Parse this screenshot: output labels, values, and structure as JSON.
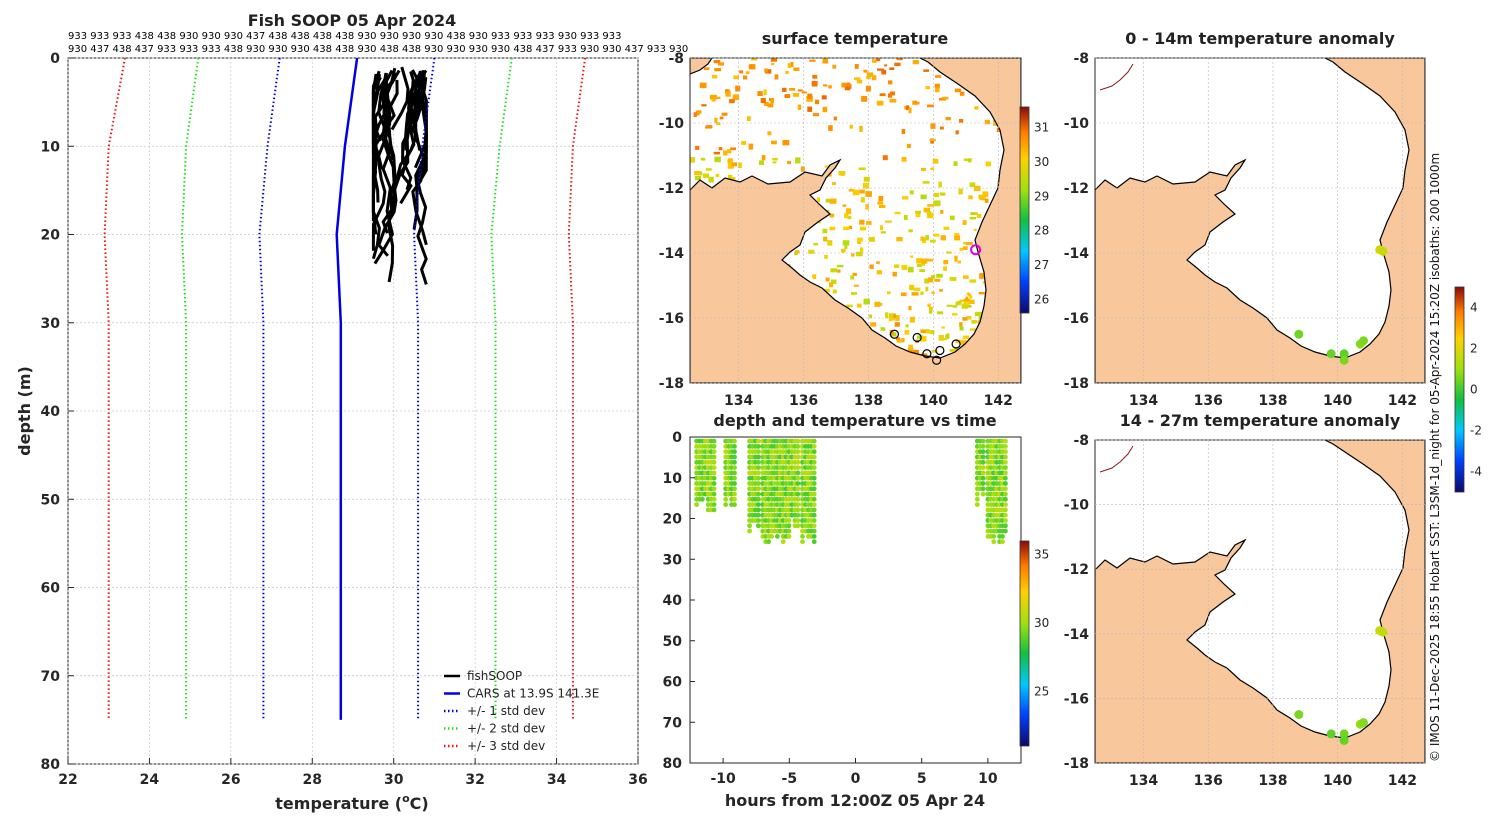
{
  "figure_title": "Fish SOOP 05 Apr 2024",
  "credit": "© IMOS 11-Dec-2025 18:55 Hobart SST: L3SM-1d_night for 05-Apr-2024 15:20Z isobaths: 200  1000m",
  "vessel_ids_row1": "933 933 933 438 438 930 930 930 437 438 438 438 438 930 930 930 930 438 930 933 933 933 930 933 933",
  "vessel_ids_row2": "930 437 438 437 933 933 933 438 930 930 930 438 438 930 438 438 930 930 930 930 438 437 933 930 930 437 933 930",
  "colors": {
    "cars": "#0000e0",
    "std1": "#0000e0",
    "std2": "#22dd22",
    "std3": "#ee1111",
    "land": "#f9c79c",
    "obs": "#000000"
  },
  "chart_data": [
    {
      "id": "profile",
      "type": "line",
      "title": "Fish SOOP 05 Apr 2024",
      "xlabel_main": "temperature (",
      "xlabel_sup": "o",
      "xlabel_end": "C)",
      "ylabel": "depth (m)",
      "xlim": [
        22,
        36
      ],
      "ylim": [
        0,
        80
      ],
      "y_reversed": true,
      "xticks": [
        "22",
        "24",
        "26",
        "28",
        "30",
        "32",
        "34",
        "36"
      ],
      "yticks": [
        "0",
        "10",
        "20",
        "30",
        "40",
        "50",
        "60",
        "70",
        "80"
      ],
      "grid": true,
      "legend_position": "bottom-right",
      "series": [
        {
          "name": "fishSOOP",
          "style": "solid-black",
          "depth": [
            1,
            3,
            5,
            8,
            10,
            12,
            15,
            18,
            20,
            22,
            25,
            27
          ],
          "temp": [
            29.9,
            30.3,
            30.1,
            30.6,
            29.8,
            30.4,
            30.0,
            30.5,
            29.9,
            30.2,
            30.3,
            30.25
          ]
        },
        {
          "name": "CARS at 13.9S 141.3E",
          "style": "solid",
          "depth": [
            0,
            10,
            20,
            30,
            40,
            50,
            60,
            70,
            75
          ],
          "temp": [
            29.1,
            28.8,
            28.6,
            28.7,
            28.7,
            28.7,
            28.7,
            28.7,
            28.7
          ]
        },
        {
          "name": "+/- 1 std dev",
          "style": "dotted",
          "depth": [
            0,
            10,
            20,
            30,
            40,
            50,
            60,
            70,
            75
          ],
          "temp": [
            27.2,
            26.9,
            26.7,
            26.8,
            26.8,
            26.8,
            26.8,
            26.8,
            26.8
          ]
        },
        {
          "name": "+/- 1 std dev",
          "style": "dotted",
          "legend": false,
          "depth": [
            0,
            10,
            20,
            30,
            40,
            50,
            60,
            70,
            75
          ],
          "temp": [
            31.0,
            30.7,
            30.5,
            30.6,
            30.6,
            30.6,
            30.6,
            30.6,
            30.6
          ]
        },
        {
          "name": "+/- 2 std dev",
          "style": "dotted",
          "depth": [
            0,
            10,
            20,
            30,
            40,
            50,
            60,
            70,
            75
          ],
          "temp": [
            25.2,
            24.9,
            24.8,
            24.9,
            24.9,
            24.9,
            24.9,
            24.9,
            24.9
          ]
        },
        {
          "name": "+/- 2 std dev",
          "style": "dotted",
          "legend": false,
          "depth": [
            0,
            10,
            20,
            30,
            40,
            50,
            60,
            70,
            75
          ],
          "temp": [
            32.9,
            32.6,
            32.4,
            32.5,
            32.5,
            32.5,
            32.5,
            32.5,
            32.5
          ]
        },
        {
          "name": "+/- 3 std dev",
          "style": "dotted",
          "depth": [
            0,
            10,
            20,
            30,
            40,
            50,
            60,
            70,
            75
          ],
          "temp": [
            23.4,
            23.0,
            22.9,
            23.0,
            23.0,
            23.0,
            23.0,
            23.0,
            23.0
          ]
        },
        {
          "name": "+/- 3 std dev",
          "style": "dotted",
          "legend": false,
          "depth": [
            0,
            10,
            20,
            30,
            40,
            50,
            60,
            70,
            75
          ],
          "temp": [
            34.7,
            34.4,
            34.3,
            34.4,
            34.4,
            34.4,
            34.4,
            34.4,
            34.4
          ]
        }
      ]
    },
    {
      "id": "sst_map",
      "type": "heatmap",
      "title": "surface temperature",
      "xlim": [
        132.5,
        142.7
      ],
      "ylim": [
        -18,
        -8
      ],
      "xticks": [
        "134",
        "136",
        "138",
        "140",
        "142"
      ],
      "yticks": [
        "-8",
        "-10",
        "-12",
        "-14",
        "-16",
        "-18"
      ],
      "colorbar_ticks": [
        "26",
        "27",
        "28",
        "29",
        "30",
        "31"
      ],
      "colorbar_range": [
        25.6,
        31.6
      ],
      "obs_points": [
        [
          138.8,
          -16.5
        ],
        [
          139.5,
          -16.6
        ],
        [
          139.8,
          -17.1
        ],
        [
          140.2,
          -17.0
        ],
        [
          140.1,
          -17.3
        ],
        [
          140.7,
          -16.8
        ]
      ],
      "cars_point": [
        141.3,
        -13.9
      ]
    },
    {
      "id": "time_depth",
      "type": "scatter",
      "title": "depth and temperature vs time",
      "xlabel": "hours from 12:00Z 05 Apr 24",
      "xlim": [
        -12.5,
        12.5
      ],
      "ylim": [
        0,
        80
      ],
      "y_reversed": true,
      "xticks": [
        "-10",
        "-5",
        "0",
        "5",
        "10"
      ],
      "yticks": [
        "0",
        "10",
        "20",
        "30",
        "40",
        "50",
        "60",
        "70",
        "80"
      ],
      "colorbar_ticks": [
        "25",
        "30",
        "35"
      ],
      "colorbar_range": [
        21,
        36
      ],
      "casts": [
        {
          "t0": -12.0,
          "t1": -10.5,
          "maxdepth": 19
        },
        {
          "t0": -9.8,
          "t1": -9.0,
          "maxdepth": 18
        },
        {
          "t0": -8.0,
          "t1": -7.2,
          "maxdepth": 25
        },
        {
          "t0": -7.0,
          "t1": -5.0,
          "maxdepth": 27
        },
        {
          "t0": -4.8,
          "t1": -4.2,
          "maxdepth": 24
        },
        {
          "t0": -4.0,
          "t1": -3.0,
          "maxdepth": 27
        },
        {
          "t0": 9.2,
          "t1": 9.8,
          "maxdepth": 17
        },
        {
          "t0": 10.0,
          "t1": 11.5,
          "maxdepth": 27
        }
      ]
    },
    {
      "id": "anom_shallow",
      "type": "scatter",
      "title": "0 - 14m temperature anomaly",
      "xlim": [
        132.5,
        142.7
      ],
      "ylim": [
        -18,
        -8
      ],
      "xticks": [
        "134",
        "136",
        "138",
        "140",
        "142"
      ],
      "yticks": [
        "-8",
        "-10",
        "-12",
        "-14",
        "-16",
        "-18"
      ],
      "points": [
        [
          138.8,
          -16.5,
          0.5
        ],
        [
          139.8,
          -17.1,
          0.4
        ],
        [
          140.2,
          -17.1,
          0.3
        ],
        [
          140.2,
          -17.3,
          0.6
        ],
        [
          140.7,
          -16.8,
          0.7
        ],
        [
          140.8,
          -16.7,
          0.6
        ],
        [
          141.3,
          -13.9,
          1.8
        ],
        [
          141.4,
          -13.95,
          1.6
        ]
      ]
    },
    {
      "id": "anom_deep",
      "type": "scatter",
      "title": "14 - 27m temperature anomaly",
      "xlim": [
        132.5,
        142.7
      ],
      "ylim": [
        -18,
        -8
      ],
      "xticks": [
        "134",
        "136",
        "138",
        "140",
        "142"
      ],
      "yticks": [
        "-8",
        "-10",
        "-12",
        "-14",
        "-16",
        "-18"
      ],
      "colorbar_ticks": [
        "4",
        "2",
        "0",
        "-2",
        "-4"
      ],
      "colorbar_range": [
        -5,
        5
      ],
      "points": [
        [
          138.8,
          -16.5,
          0.6
        ],
        [
          139.8,
          -17.1,
          0.3
        ],
        [
          140.2,
          -17.1,
          0.5
        ],
        [
          140.2,
          -17.3,
          0.4
        ],
        [
          140.7,
          -16.8,
          0.9
        ],
        [
          140.8,
          -16.75,
          0.7
        ],
        [
          141.3,
          -13.9,
          1.7
        ],
        [
          141.4,
          -13.95,
          1.5
        ]
      ]
    }
  ]
}
